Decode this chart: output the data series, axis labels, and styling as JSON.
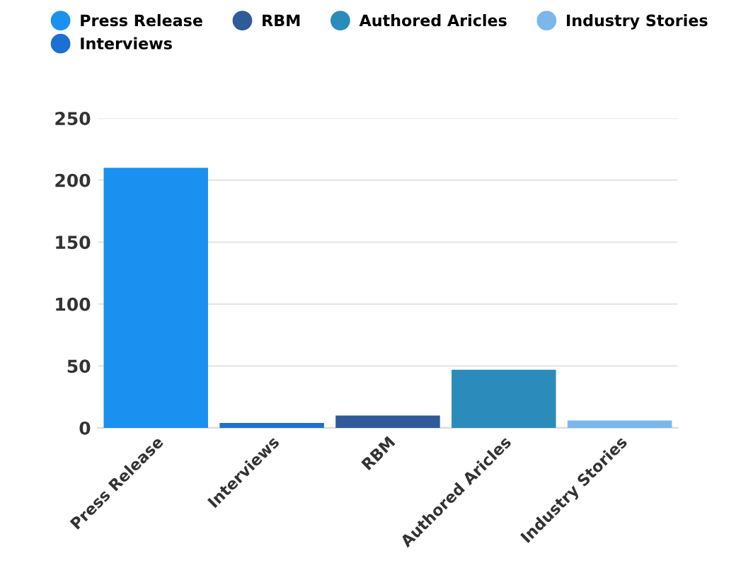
{
  "chart_data": {
    "type": "bar",
    "categories": [
      "Press Release",
      "Interviews",
      "RBM",
      "Authored Aricles",
      "Industry Stories"
    ],
    "series": [
      {
        "name": "Press Release",
        "color": "#1a91f0",
        "values": [
          210,
          null,
          null,
          null,
          null
        ]
      },
      {
        "name": "Interviews",
        "color": "#1d6fd1",
        "values": [
          null,
          4,
          null,
          null,
          null
        ]
      },
      {
        "name": "RBM",
        "color": "#2f5b98",
        "values": [
          null,
          null,
          10,
          null,
          null
        ]
      },
      {
        "name": "Authored Aricles",
        "color": "#2b8cbb",
        "values": [
          null,
          null,
          null,
          47,
          null
        ]
      },
      {
        "name": "Industry Stories",
        "color": "#7ab8ec",
        "values": [
          null,
          null,
          null,
          null,
          6
        ]
      }
    ],
    "ylim": [
      0,
      250
    ],
    "yticks": [
      0,
      50,
      100,
      150,
      200,
      250
    ],
    "grid": "y",
    "legend": "top"
  }
}
